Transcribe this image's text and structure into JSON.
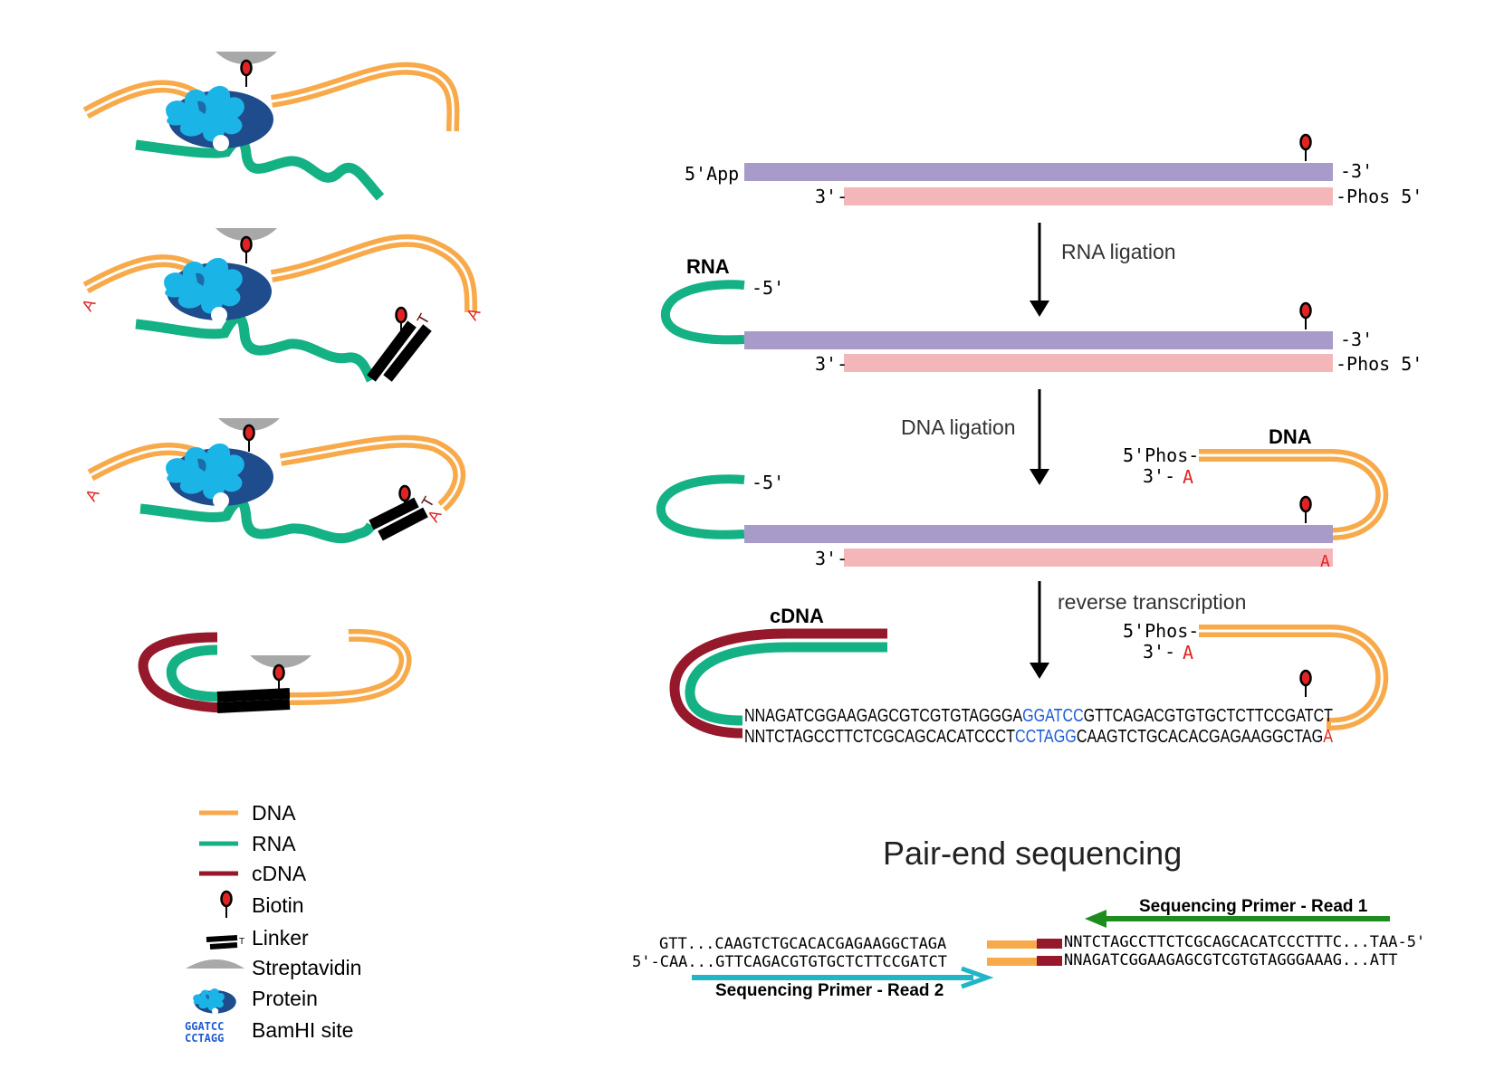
{
  "panel_right": {
    "step1": {
      "left_top": "5'App",
      "right_top": "-3'",
      "left_bottom": "3'-",
      "right_bottom": "-Phos 5'"
    },
    "arrow1_label": "RNA ligation",
    "step2": {
      "rna_label": "RNA",
      "rna_end": "-5'",
      "right_top": "-3'",
      "left_bottom": "3'-",
      "right_bottom": "-Phos 5'"
    },
    "arrow2_label": "DNA ligation",
    "step3": {
      "rna_end": "-5'",
      "dna_label": "DNA",
      "dna_top": "5'Phos-",
      "dna_bottom": "3'-",
      "dna_a": "A",
      "left_bottom": "3'-",
      "bottom_a": "A"
    },
    "arrow3_label": "reverse transcription",
    "step4": {
      "cdna_label": "cDNA",
      "dna_top": "5'Phos-",
      "dna_bottom": "3'-",
      "dna_a": "A",
      "seq_top_1": "NNAGATCGGAAGAGCGTCGTGTAGGGA",
      "seq_top_site": "GGATCC",
      "seq_top_2": "GTTCAGACGTGTGCTCTTCCGATCT",
      "seq_bot_1": "NNTCTAGCCTTCTCGCAGCACATCCCT",
      "seq_bot_site": "CCTAGG",
      "seq_bot_2": "CAAGTCTGCACACGAGAAGGCTAG",
      "seq_bot_a": "A"
    }
  },
  "panel_left": {
    "dna_a_marks": "A",
    "linker_t": "T"
  },
  "pair_end": {
    "title": "Pair-end sequencing",
    "primer_read1": "Sequencing Primer - Read 1",
    "primer_read2": "Sequencing Primer - Read 2",
    "left_top": "GTT...CAAGTCTGCACACGAGAAGGCTAGA",
    "left_bottom": "5'-CAA...GTTCAGACGTGTGCTCTTCCGATCT",
    "right_top": "NNTCTAGCCTTCTCGCAGCACATCCCTTTC...TAA-5'",
    "right_bottom": "NNAGATCGGAAGAGCGTCGTGTAGGGAAAG...ATT"
  },
  "legend": {
    "items": [
      "DNA",
      "RNA",
      "cDNA",
      "Biotin",
      "Linker",
      "Streptavidin",
      "Protein",
      "BamHI site"
    ],
    "bamhi_top": "GGATCC",
    "bamhi_bottom": "CCTAGG"
  },
  "colors": {
    "dna": "#F8A94A",
    "rna": "#14B184",
    "cdna": "#96182B",
    "purple_strand": "#A89BC9",
    "pink_strand": "#F4B7B9",
    "protein_light": "#1BB4E6",
    "protein_dark": "#1E4C8C",
    "streptavidin": "#A8A8A8",
    "biotin": "#E02424",
    "bamhi": "#1E5BD6",
    "read1_arrow": "#1E8C1E",
    "read2_arrow": "#21B5C6"
  }
}
